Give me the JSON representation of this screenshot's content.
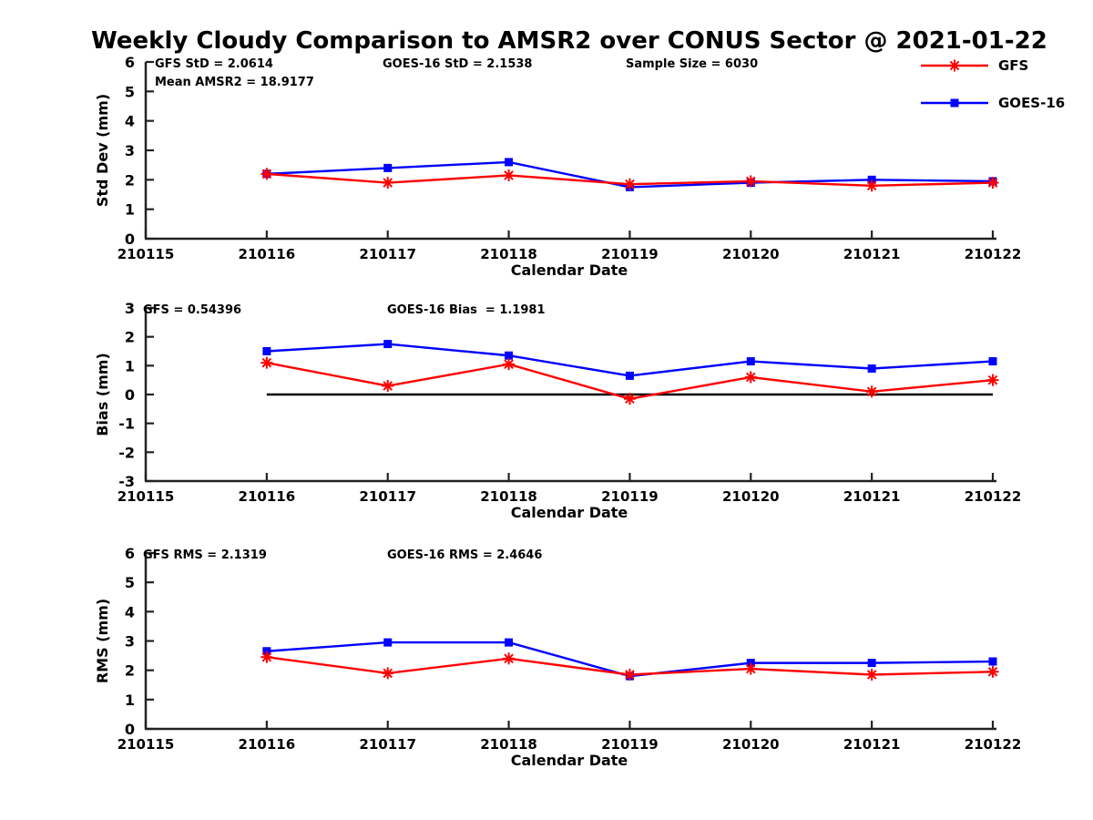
{
  "title": "Weekly Cloudy Comparison to AMSR2 over CONUS Sector @ 2021-01-22",
  "legend": {
    "position": "top-right",
    "items": [
      {
        "label": "GFS",
        "color": "#ff0000",
        "marker": "asterisk"
      },
      {
        "label": "GOES-16",
        "color": "#0000ff",
        "marker": "square"
      }
    ]
  },
  "chart_data": [
    {
      "type": "line",
      "name": "std-dev",
      "ylabel": "Std Dev (mm)",
      "xlabel": "Calendar Date",
      "ylim": [
        0,
        6
      ],
      "y_ticks": [
        0,
        1,
        2,
        3,
        4,
        5,
        6
      ],
      "x_ticks": [
        "210115",
        "210116",
        "210117",
        "210118",
        "210119",
        "210120",
        "210121",
        "210122"
      ],
      "x": [
        "210116",
        "210117",
        "210118",
        "210119",
        "210120",
        "210121",
        "210122"
      ],
      "grid": false,
      "annotations": [
        {
          "text": "GFS StD = 2.0614",
          "x": 170,
          "row": 0
        },
        {
          "text": "Mean AMSR2 = 18.9177",
          "x": 170,
          "row": 1
        },
        {
          "text": "GOES-16 StD = 2.1538",
          "x": 420,
          "row": 0
        },
        {
          "text": "Sample Size = 6030",
          "x": 687,
          "row": 0
        }
      ],
      "series": [
        {
          "name": "GFS",
          "color": "#ff0000",
          "marker": "asterisk",
          "values": [
            2.2,
            1.9,
            2.15,
            1.85,
            1.95,
            1.8,
            1.9
          ]
        },
        {
          "name": "GOES-16",
          "color": "#0000ff",
          "marker": "square",
          "values": [
            2.2,
            2.4,
            2.6,
            1.75,
            1.9,
            2.0,
            1.95
          ]
        }
      ]
    },
    {
      "type": "line",
      "name": "bias",
      "ylabel": "Bias (mm)",
      "xlabel": "Calendar Date",
      "ylim": [
        -3,
        3
      ],
      "y_ticks": [
        -3,
        -2,
        -1,
        0,
        1,
        2,
        3
      ],
      "x_ticks": [
        "210115",
        "210116",
        "210117",
        "210118",
        "210119",
        "210120",
        "210121",
        "210122"
      ],
      "x": [
        "210116",
        "210117",
        "210118",
        "210119",
        "210120",
        "210121",
        "210122"
      ],
      "grid": false,
      "zero_line": true,
      "annotations": [
        {
          "text": "GFS = 0.54396",
          "x": 157,
          "row": 0
        },
        {
          "text": "GOES-16 Bias  = 1.1981",
          "x": 425,
          "row": 0
        }
      ],
      "series": [
        {
          "name": "GFS",
          "color": "#ff0000",
          "marker": "asterisk",
          "values": [
            1.1,
            0.3,
            1.05,
            -0.15,
            0.6,
            0.1,
            0.5
          ]
        },
        {
          "name": "GOES-16",
          "color": "#0000ff",
          "marker": "square",
          "values": [
            1.5,
            1.75,
            1.35,
            0.65,
            1.15,
            0.9,
            1.15
          ]
        }
      ]
    },
    {
      "type": "line",
      "name": "rms",
      "ylabel": "RMS (mm)",
      "xlabel": "Calendar Date",
      "ylim": [
        0,
        6
      ],
      "y_ticks": [
        0,
        1,
        2,
        3,
        4,
        5,
        6
      ],
      "x_ticks": [
        "210115",
        "210116",
        "210117",
        "210118",
        "210119",
        "210120",
        "210121",
        "210122"
      ],
      "x": [
        "210116",
        "210117",
        "210118",
        "210119",
        "210120",
        "210121",
        "210122"
      ],
      "grid": false,
      "annotations": [
        {
          "text": "GFS RMS = 2.1319",
          "x": 157,
          "row": 0
        },
        {
          "text": "GOES-16 RMS = 2.4646",
          "x": 425,
          "row": 0
        }
      ],
      "series": [
        {
          "name": "GFS",
          "color": "#ff0000",
          "marker": "asterisk",
          "values": [
            2.45,
            1.9,
            2.4,
            1.85,
            2.05,
            1.85,
            1.95
          ]
        },
        {
          "name": "GOES-16",
          "color": "#0000ff",
          "marker": "square",
          "values": [
            2.65,
            2.95,
            2.95,
            1.8,
            2.25,
            2.25,
            2.3
          ]
        }
      ]
    }
  ]
}
